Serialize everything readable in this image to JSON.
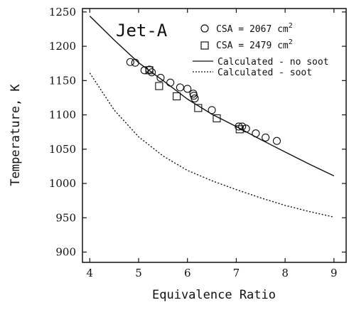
{
  "chart_data": {
    "type": "scatter",
    "title": "Jet-A",
    "xlabel": "Equivalence Ratio",
    "ylabel": "Temperature, K",
    "xlim": [
      3.85,
      9.25
    ],
    "ylim": [
      885,
      1255
    ],
    "xticks": [
      4,
      5,
      6,
      7,
      8,
      9
    ],
    "yticks": [
      900,
      950,
      1000,
      1050,
      1100,
      1150,
      1200,
      1250
    ],
    "grid": false,
    "legend_position": "top-right",
    "series": [
      {
        "name": "CSA = 2067 cm2",
        "legend_base": "CSA = 2067 cm",
        "legend_sup": "2",
        "marker": "circle",
        "x": [
          4.83,
          4.93,
          5.12,
          5.22,
          5.27,
          5.45,
          5.65,
          5.85,
          6.0,
          6.12,
          6.13,
          6.15,
          6.5,
          7.05,
          7.12,
          7.2,
          7.4,
          7.6,
          7.83
        ],
        "y": [
          1177,
          1176,
          1165,
          1166,
          1162,
          1154,
          1147,
          1140,
          1138,
          1131,
          1128,
          1124,
          1107,
          1083,
          1083,
          1080,
          1073,
          1067,
          1062
        ]
      },
      {
        "name": "CSA = 2479 cm2",
        "legend_base": "CSA = 2479 cm",
        "legend_sup": "2",
        "marker": "square",
        "x": [
          5.22,
          5.42,
          5.78,
          6.22,
          6.6,
          7.07
        ],
        "y": [
          1165,
          1142,
          1127,
          1110,
          1095,
          1079
        ]
      },
      {
        "name": "Calculated - no soot",
        "marker": "line",
        "dash": "solid",
        "x": [
          4.0,
          4.5,
          5.0,
          5.5,
          6.0,
          6.5,
          7.0,
          7.5,
          8.0,
          8.5,
          9.0
        ],
        "y": [
          1244,
          1209,
          1176,
          1150,
          1123,
          1101,
          1083,
          1064,
          1046,
          1028,
          1011
        ]
      },
      {
        "name": "Calculated - soot",
        "marker": "line",
        "dash": "dotted",
        "x": [
          4.0,
          4.5,
          5.0,
          5.5,
          6.0,
          6.5,
          7.0,
          7.5,
          8.0,
          8.5,
          9.0
        ],
        "y": [
          1161,
          1107,
          1068,
          1040,
          1019,
          1004,
          991,
          979,
          968,
          959,
          951
        ]
      }
    ]
  }
}
